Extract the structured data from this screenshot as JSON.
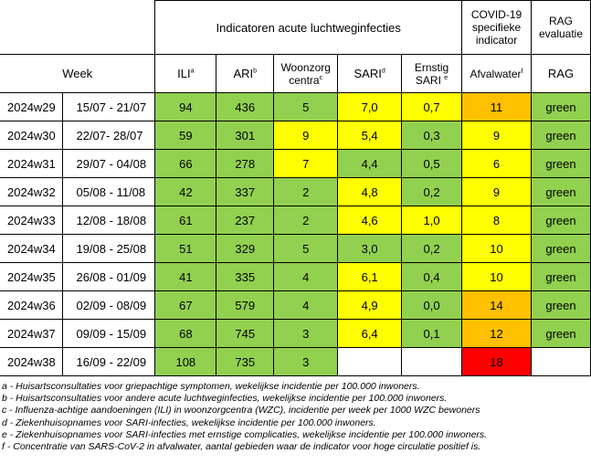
{
  "header": {
    "group_acute": "Indicatoren acute luchtweginfecties",
    "group_covid": [
      "COVID-19",
      "specifieke",
      "indicator"
    ],
    "group_rag": [
      "RAG",
      "evaluatie"
    ],
    "week": "Week",
    "ili": "ILI",
    "ili_sup": "a",
    "ari": "ARI",
    "ari_sup": "b",
    "woonzorg_line1": "Woonzorg",
    "woonzorg_line2": "centra",
    "woonzorg_sup": "c",
    "sari": "SARI",
    "sari_sup": "d",
    "ernstig_line1": "Ernstig",
    "ernstig_line2": "SARI",
    "ernstig_sup": "e",
    "afvalwater": "Afvalwater",
    "afvalwater_sup": "f",
    "rag": "RAG"
  },
  "rows": [
    {
      "week": "2024w29",
      "dates": "15/07 - 21/07",
      "ili": "94",
      "ari": "436",
      "woonzorg": "5",
      "sari": "7,0",
      "ernstig": "0,7",
      "afvalwater": "11",
      "rag": "green"
    },
    {
      "week": "2024w30",
      "dates": "22/07- 28/07",
      "ili": "59",
      "ari": "301",
      "woonzorg": "9",
      "sari": "5,4",
      "ernstig": "0,3",
      "afvalwater": "9",
      "rag": "green"
    },
    {
      "week": "2024w31",
      "dates": "29/07 - 04/08",
      "ili": "66",
      "ari": "278",
      "woonzorg": "7",
      "sari": "4,4",
      "ernstig": "0,5",
      "afvalwater": "6",
      "rag": "green"
    },
    {
      "week": "2024w32",
      "dates": "05/08 - 11/08",
      "ili": "42",
      "ari": "337",
      "woonzorg": "2",
      "sari": "4,8",
      "ernstig": "0,2",
      "afvalwater": "9",
      "rag": "green"
    },
    {
      "week": "2024w33",
      "dates": "12/08 - 18/08",
      "ili": "61",
      "ari": "237",
      "woonzorg": "2",
      "sari": "4,6",
      "ernstig": "1,0",
      "afvalwater": "8",
      "rag": "green"
    },
    {
      "week": "2024w34",
      "dates": "19/08 - 25/08",
      "ili": "51",
      "ari": "329",
      "woonzorg": "5",
      "sari": "3,0",
      "ernstig": "0,2",
      "afvalwater": "10",
      "rag": "green"
    },
    {
      "week": "2024w35",
      "dates": "26/08 - 01/09",
      "ili": "41",
      "ari": "335",
      "woonzorg": "4",
      "sari": "6,1",
      "ernstig": "0,4",
      "afvalwater": "10",
      "rag": "green"
    },
    {
      "week": "2024w36",
      "dates": "02/09 - 08/09",
      "ili": "67",
      "ari": "579",
      "woonzorg": "4",
      "sari": "4,9",
      "ernstig": "0,0",
      "afvalwater": "14",
      "rag": "green"
    },
    {
      "week": "2024w37",
      "dates": "09/09 - 15/09",
      "ili": "68",
      "ari": "745",
      "woonzorg": "3",
      "sari": "6,4",
      "ernstig": "0,1",
      "afvalwater": "12",
      "rag": "green"
    },
    {
      "week": "2024w38",
      "dates": "16/09 - 22/09",
      "ili": "108",
      "ari": "735",
      "woonzorg": "3",
      "sari": "",
      "ernstig": "",
      "afvalwater": "18",
      "rag": ""
    }
  ],
  "colors": {
    "green": "#92d050",
    "yellow": "#ffff00",
    "orange": "#ffc000",
    "red": "#ff0000"
  },
  "footnotes": [
    "a - Huisartsconsultaties voor griepachtige symptomen, wekelijkse incidentie per 100.000 inwoners.",
    "b - Huisartsconsultaties voor andere acute luchtweginfecties, wekelijkse incidentie per 100.000 inwoners.",
    "c - Influenza-achtige aandoeningen (ILI) in woonzorgcentra (WZC), incidentie per week per 1000 WZC bewoners",
    "d - Ziekenhuisopnames voor SARI-infecties, wekelijkse incidentie per 100.000 inwoners.",
    "e - Ziekenhuisopnames voor SARI-infecties met ernstige complicaties, wekelijkse incidentie per 100.000 inwoners.",
    "f - Concentratie van SARS-CoV-2 in afvalwater, aantal gebieden waar de indicator voor hoge circulatie positief is."
  ]
}
